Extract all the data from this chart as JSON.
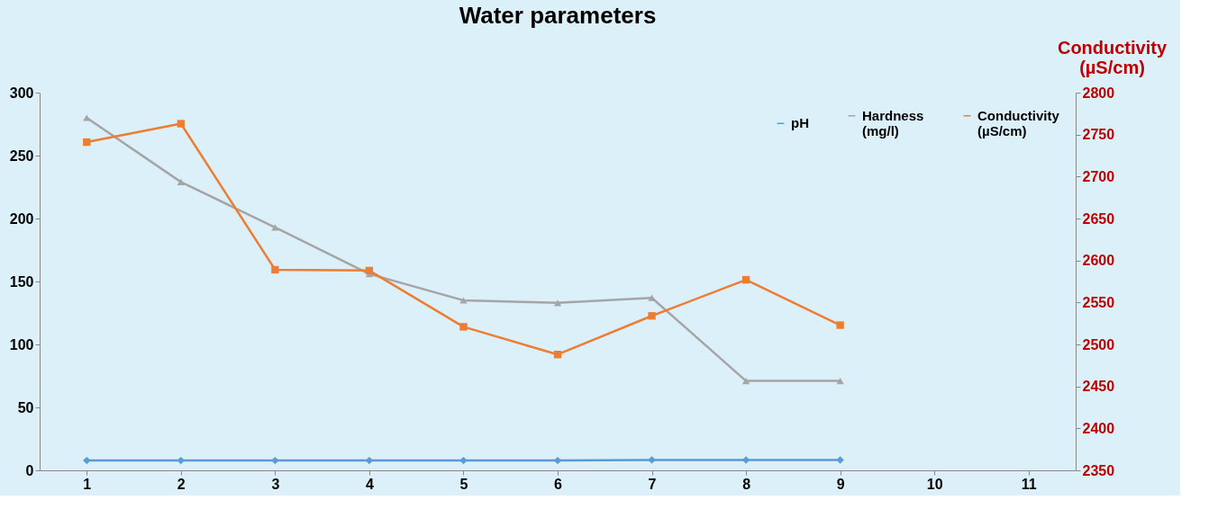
{
  "chart_data": {
    "type": "line",
    "title": "Water parameters",
    "categories": [
      "1",
      "2",
      "3",
      "4",
      "5",
      "6",
      "7",
      "8",
      "9",
      "10",
      "11"
    ],
    "y2label": "Conductivity (µS/cm)",
    "series": [
      {
        "name": "pH",
        "color": "#5b9bd5",
        "marker": "diamond",
        "values": [
          7.8,
          7.8,
          7.8,
          7.8,
          7.8,
          7.8,
          8.3,
          8.2,
          8.2,
          null,
          null
        ]
      },
      {
        "name": "Hardness (mg/l)",
        "color": "#a5a5a5",
        "marker": "triangle",
        "values": [
          280,
          229,
          193,
          156,
          135,
          133,
          137,
          71,
          71,
          null,
          null
        ]
      },
      {
        "name": "Conductivity (µS/cm)",
        "color": "#ed7d31",
        "marker": "square",
        "axis": "y2",
        "values": [
          2741,
          2763,
          2589,
          2588,
          2521,
          2488,
          2534,
          2577,
          2523,
          null,
          null
        ]
      }
    ],
    "ylim": [
      0,
      300
    ],
    "yticks": [
      0,
      50,
      100,
      150,
      200,
      250,
      300
    ],
    "y2lim": [
      2350,
      2800
    ],
    "y2ticks": [
      2350,
      2400,
      2450,
      2500,
      2550,
      2600,
      2650,
      2700,
      2750,
      2800
    ],
    "grid": false,
    "legend": "top right",
    "line_style": "solid"
  }
}
